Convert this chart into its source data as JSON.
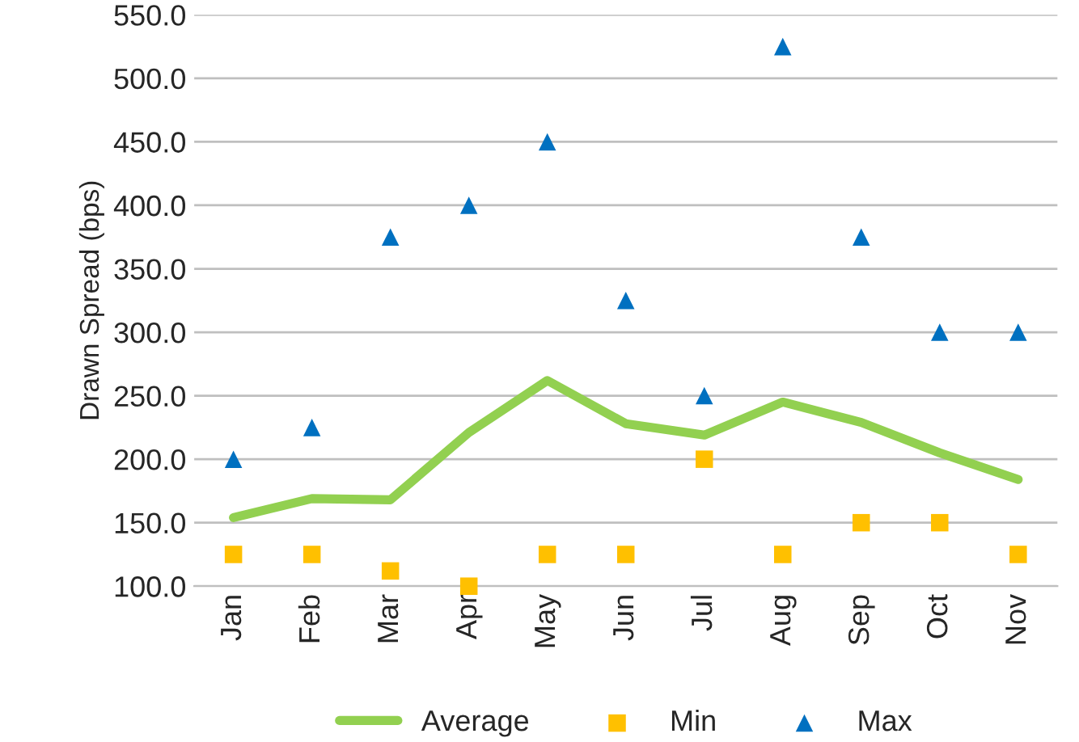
{
  "chart_data": {
    "type": "line",
    "ylabel": "Drawn Spread (bps)",
    "categories": [
      "Jan",
      "Feb",
      "Mar",
      "Apr",
      "May",
      "Jun",
      "Jul",
      "Aug",
      "Sep",
      "Oct",
      "Nov"
    ],
    "series": [
      {
        "name": "Average",
        "color": "#92d050",
        "marker": "none",
        "values": [
          154,
          169,
          168,
          221,
          262,
          228,
          219,
          245,
          229,
          205,
          184
        ]
      },
      {
        "name": "Min",
        "type": "scatter",
        "color": "#ffc000",
        "marker": "square",
        "values": [
          125,
          125,
          112,
          100,
          125,
          125,
          200,
          125,
          150,
          150,
          125
        ]
      },
      {
        "name": "Max",
        "type": "scatter",
        "color": "#0070c0",
        "marker": "triangle",
        "values": [
          200,
          225,
          375,
          400,
          450,
          325,
          250,
          525,
          375,
          300,
          300
        ]
      }
    ],
    "ylim": [
      100,
      550
    ],
    "yticks": [
      {
        "value": 100,
        "label": "100.0"
      },
      {
        "value": 150,
        "label": "150.0"
      },
      {
        "value": 200,
        "label": "200.0"
      },
      {
        "value": 250,
        "label": "250.0"
      },
      {
        "value": 300,
        "label": "300.0"
      },
      {
        "value": 350,
        "label": "350.0"
      },
      {
        "value": 400,
        "label": "400.0"
      },
      {
        "value": 450,
        "label": "450.0"
      },
      {
        "value": 500,
        "label": "500.0"
      },
      {
        "value": 550,
        "label": "550.0"
      }
    ],
    "grid": "y",
    "legend": "bottom"
  }
}
